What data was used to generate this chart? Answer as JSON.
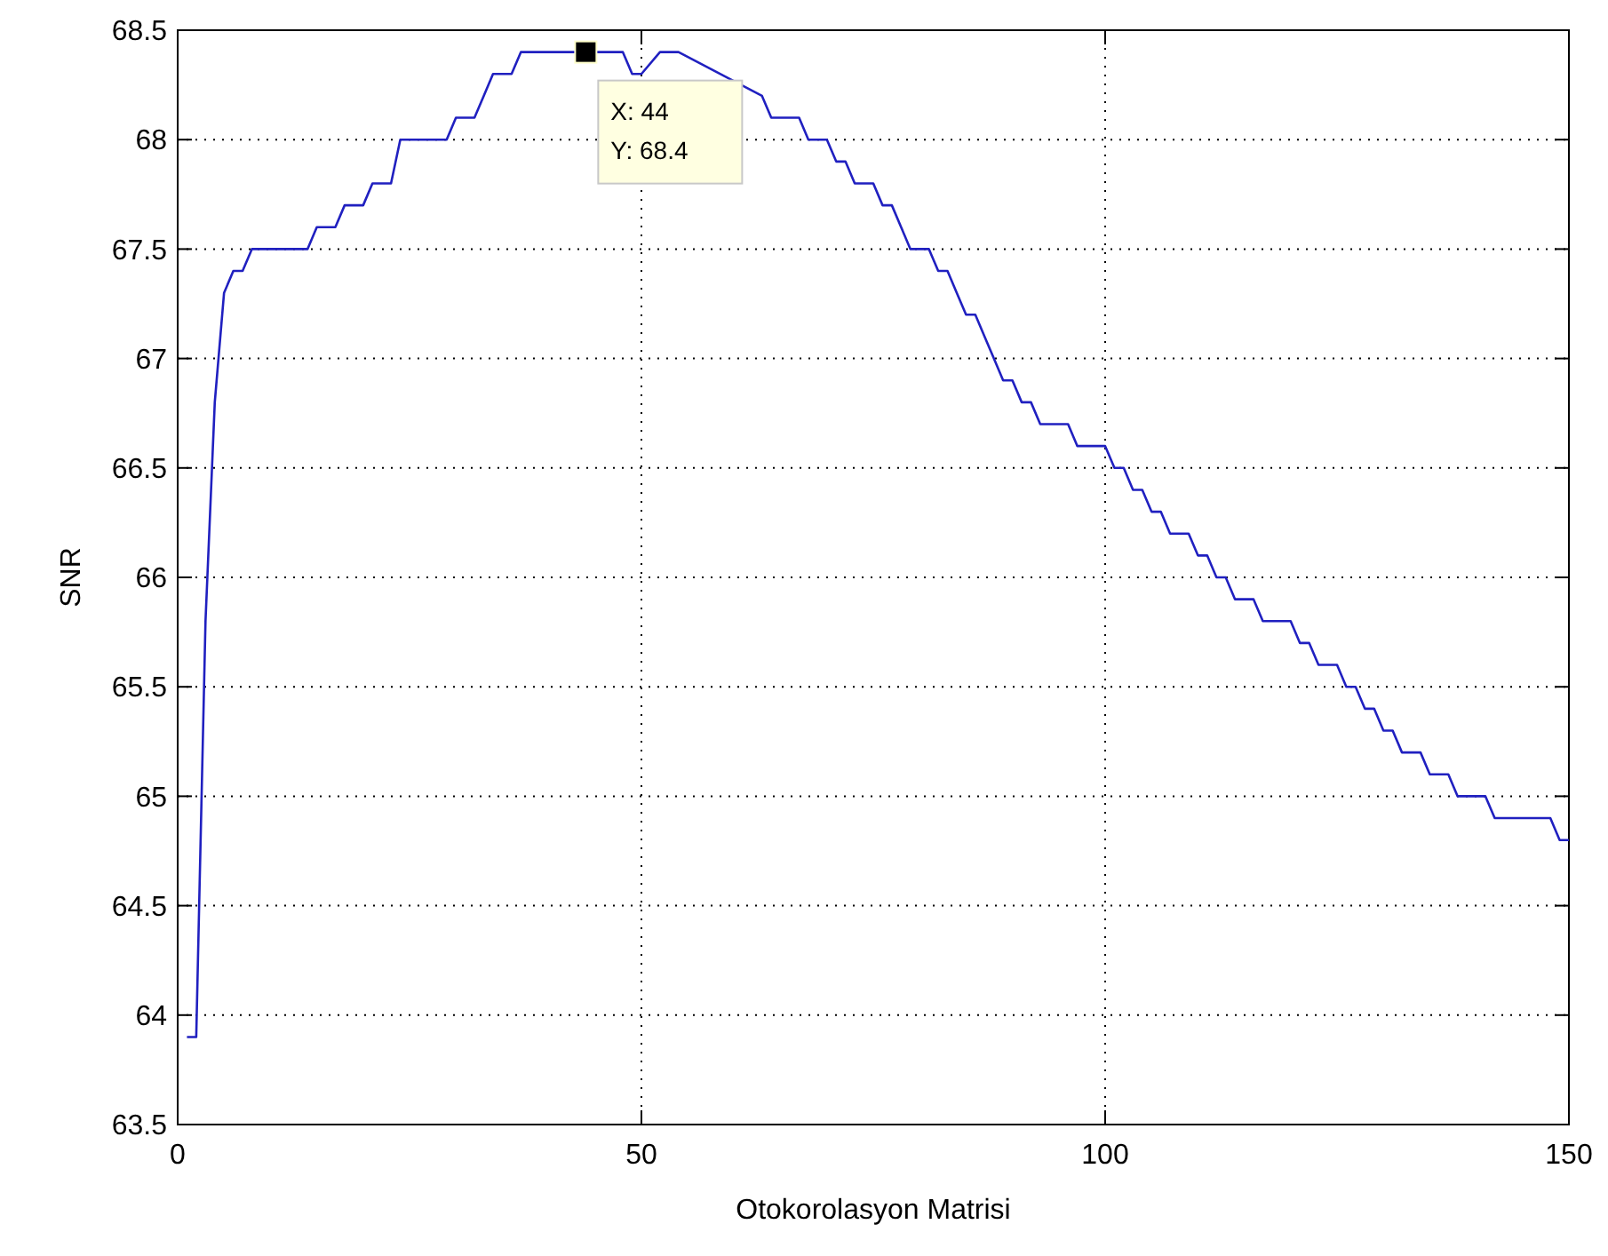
{
  "chart_data": {
    "type": "line",
    "xlabel": "Otokorolasyon Matrisi",
    "ylabel": "SNR",
    "x": [
      1,
      2,
      3,
      4,
      5,
      6,
      7,
      8,
      14,
      15,
      17,
      18,
      20,
      21,
      23,
      24,
      29,
      30,
      32,
      33,
      34,
      36,
      37,
      48,
      49,
      50,
      52,
      54,
      63,
      64,
      67,
      68,
      70,
      71,
      72,
      73,
      75,
      76,
      77,
      78,
      79,
      81,
      82,
      83,
      84,
      85,
      86,
      87,
      88,
      89,
      90,
      91,
      92,
      93,
      96,
      97,
      100,
      101,
      102,
      103,
      104,
      105,
      106,
      107,
      109,
      110,
      111,
      112,
      113,
      114,
      116,
      117,
      120,
      121,
      122,
      123,
      125,
      126,
      127,
      128,
      129,
      130,
      131,
      132,
      134,
      135,
      137,
      138,
      141,
      142,
      148,
      149,
      150
    ],
    "series": [
      {
        "color": "#2020c0",
        "values": [
          63.9,
          63.9,
          65.8,
          66.8,
          67.3,
          67.4,
          67.4,
          67.5,
          67.5,
          67.6,
          67.6,
          67.7,
          67.7,
          67.8,
          67.8,
          68.0,
          68.0,
          68.1,
          68.1,
          68.2,
          68.3,
          68.3,
          68.4,
          68.4,
          68.3,
          68.3,
          68.4,
          68.4,
          68.2,
          68.1,
          68.1,
          68.0,
          68.0,
          67.9,
          67.9,
          67.8,
          67.8,
          67.7,
          67.7,
          67.6,
          67.5,
          67.5,
          67.4,
          67.4,
          67.3,
          67.2,
          67.2,
          67.1,
          67.0,
          66.9,
          66.9,
          66.8,
          66.8,
          66.7,
          66.7,
          66.6,
          66.6,
          66.5,
          66.5,
          66.4,
          66.4,
          66.3,
          66.3,
          66.2,
          66.2,
          66.1,
          66.1,
          66.0,
          66.0,
          65.9,
          65.9,
          65.8,
          65.8,
          65.7,
          65.7,
          65.6,
          65.6,
          65.5,
          65.5,
          65.4,
          65.4,
          65.3,
          65.3,
          65.2,
          65.2,
          65.1,
          65.1,
          65.0,
          65.0,
          64.9,
          64.9,
          64.8,
          64.8
        ]
      }
    ],
    "xlim": [
      0,
      150
    ],
    "ylim": [
      63.5,
      68.5
    ],
    "xticks": [
      0,
      50,
      100,
      150
    ],
    "yticks": [
      63.5,
      64,
      64.5,
      65,
      65.5,
      66,
      66.5,
      67,
      67.5,
      68,
      68.5
    ],
    "grid": true,
    "line_style": "solid",
    "marker": "none",
    "annotations": [
      {
        "text": "X: 44\nY: 68.4",
        "x": 44,
        "y": 68.4
      }
    ]
  }
}
